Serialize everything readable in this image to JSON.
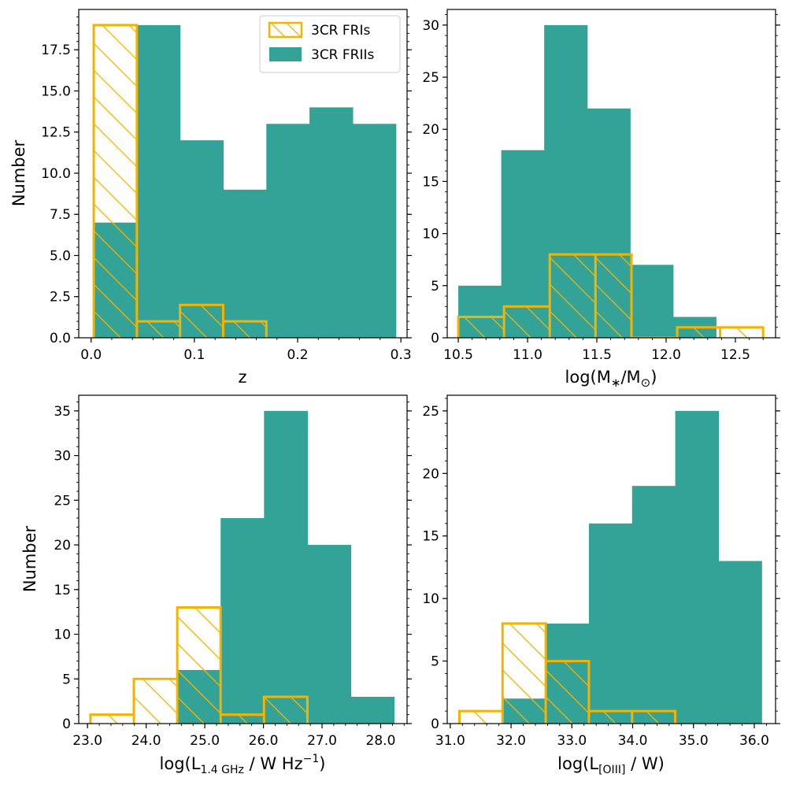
{
  "colors": {
    "fri": "#f5b300",
    "frii": "#33a398",
    "axis": "#000000"
  },
  "legend": {
    "fri_label": "3CR FRIs",
    "frii_label": "3CR FRIIs"
  },
  "chart_data": [
    {
      "type": "histogram",
      "ylabel": "Number",
      "xlabel": {
        "main": "z"
      },
      "xlim": [
        -0.012,
        0.306
      ],
      "ylim": [
        0,
        19.95
      ],
      "xticks": [
        0.0,
        0.1,
        0.2,
        0.3
      ],
      "xtick_labels": [
        "0.0",
        "0.1",
        "0.2",
        "0.3"
      ],
      "yticks": [
        0,
        2.5,
        5,
        7.5,
        10,
        12.5,
        15,
        17.5
      ],
      "ytick_labels": [
        "0.0",
        "2.5",
        "5.0",
        "7.5",
        "10.0",
        "12.5",
        "15.0",
        "17.5"
      ],
      "yminor": 0.5,
      "xminor": 0.02,
      "legend_position": "top-right",
      "series": [
        {
          "name": "3CR FRIIs",
          "style": "filled",
          "edges": [
            0.0025,
            0.0443,
            0.0861,
            0.1279,
            0.1697,
            0.2115,
            0.2533,
            0.2951
          ],
          "counts": [
            7,
            19,
            12,
            9,
            13,
            14,
            13
          ]
        },
        {
          "name": "3CR FRIs",
          "style": "hatched",
          "edges": [
            0.0025,
            0.0443,
            0.0861,
            0.1279,
            0.1697
          ],
          "counts": [
            19,
            1,
            2,
            1
          ]
        }
      ]
    },
    {
      "type": "histogram",
      "ylabel": "",
      "xlabel": {
        "main": "log(M",
        "sub": "∗",
        "mid": "/M",
        "sub2": "⊙",
        "end": ")"
      },
      "xlim": [
        10.42,
        12.79
      ],
      "ylim": [
        0,
        31.5
      ],
      "xticks": [
        10.5,
        11.0,
        11.5,
        12.0,
        12.5
      ],
      "xtick_labels": [
        "10.5",
        "11.0",
        "11.5",
        "12.0",
        "12.5"
      ],
      "yticks": [
        0,
        5,
        10,
        15,
        20,
        25,
        30
      ],
      "ytick_labels": [
        "0",
        "5",
        "10",
        "15",
        "20",
        "25",
        "30"
      ],
      "yminor": 1,
      "xminor": 0.1,
      "series": [
        {
          "name": "3CR FRIIs",
          "style": "filled",
          "edges": [
            10.5,
            10.81,
            11.12,
            11.43,
            11.74,
            12.05,
            12.36
          ],
          "counts": [
            5,
            18,
            30,
            22,
            7,
            2
          ]
        },
        {
          "name": "3CR FRIs",
          "style": "hatched",
          "edges": [
            10.5,
            10.83,
            11.16,
            11.49,
            11.75,
            12.08,
            12.39,
            12.7
          ],
          "counts": [
            2,
            3,
            8,
            8,
            0,
            1,
            1
          ]
        }
      ]
    },
    {
      "type": "histogram",
      "ylabel": "Number",
      "xlabel": {
        "main": "log(L",
        "sub": "1.4 GHz",
        "end": " / W Hz",
        "sup": "−1",
        "close": ")"
      },
      "xlim": [
        22.85,
        28.45
      ],
      "ylim": [
        0,
        36.75
      ],
      "xticks": [
        23.0,
        24.0,
        25.0,
        26.0,
        27.0,
        28.0
      ],
      "xtick_labels": [
        "23.0",
        "24.0",
        "25.0",
        "26.0",
        "27.0",
        "28.0"
      ],
      "yticks": [
        0,
        5,
        10,
        15,
        20,
        25,
        30,
        35
      ],
      "ytick_labels": [
        "0",
        "5",
        "10",
        "15",
        "20",
        "25",
        "30",
        "35"
      ],
      "yminor": 1,
      "xminor": 0.2,
      "series": [
        {
          "name": "3CR FRIIs",
          "style": "filled",
          "edges": [
            23.05,
            23.79,
            24.53,
            25.27,
            26.01,
            26.75,
            27.49,
            28.23
          ],
          "counts": [
            0,
            0,
            6,
            23,
            35,
            20,
            3
          ]
        },
        {
          "name": "3CR FRIs",
          "style": "hatched",
          "edges": [
            23.05,
            23.79,
            24.53,
            25.27,
            26.01,
            26.75
          ],
          "counts": [
            1,
            5,
            13,
            1,
            3
          ]
        }
      ]
    },
    {
      "type": "histogram",
      "ylabel": "",
      "xlabel": {
        "main": "log(L",
        "sub": "[OIII]",
        "end": " / W)"
      },
      "xlim": [
        30.95,
        36.35
      ],
      "ylim": [
        0,
        26.25
      ],
      "xticks": [
        31.0,
        32.0,
        33.0,
        34.0,
        35.0,
        36.0
      ],
      "xtick_labels": [
        "31.0",
        "32.0",
        "33.0",
        "34.0",
        "35.0",
        "36.0"
      ],
      "yticks": [
        0,
        5,
        10,
        15,
        20,
        25
      ],
      "ytick_labels": [
        "0",
        "5",
        "10",
        "15",
        "20",
        "25"
      ],
      "yminor": 1,
      "xminor": 0.2,
      "series": [
        {
          "name": "3CR FRIIs",
          "style": "filled",
          "edges": [
            31.15,
            31.86,
            32.57,
            33.28,
            33.99,
            34.7,
            35.41,
            36.12
          ],
          "counts": [
            0,
            2,
            8,
            16,
            19,
            25,
            13
          ]
        },
        {
          "name": "3CR FRIs",
          "style": "hatched",
          "edges": [
            31.15,
            31.86,
            32.57,
            33.28,
            33.99,
            34.7
          ],
          "counts": [
            1,
            8,
            5,
            1,
            1
          ]
        }
      ]
    }
  ]
}
